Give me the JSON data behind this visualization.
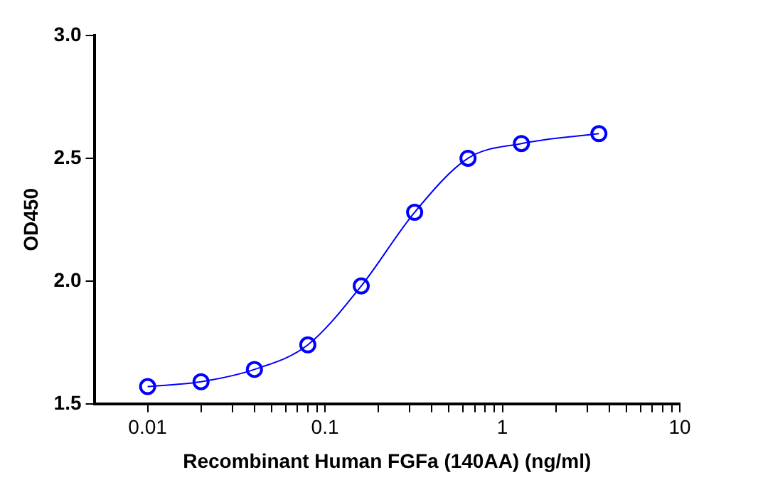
{
  "chart_data": {
    "type": "line",
    "xlabel": "Recombinant Human FGFa (140AA) (ng/ml)",
    "ylabel": "OD450",
    "x": [
      0.01,
      0.02,
      0.04,
      0.08,
      0.16,
      0.32,
      0.64,
      1.28,
      3.5
    ],
    "series": [
      {
        "color": "#0000ff",
        "values": [
          1.57,
          1.59,
          1.64,
          1.74,
          1.98,
          2.28,
          2.5,
          2.56,
          2.6
        ]
      }
    ],
    "log": "x",
    "marker": "circle",
    "line_style": "solid",
    "grid": false,
    "legend": false,
    "xlim": [
      0.005,
      10
    ],
    "xticks": [
      0.01,
      {
        "value": 0.02,
        "label": null
      },
      {
        "value": 0.03,
        "label": null
      },
      {
        "value": 0.04,
        "label": null
      },
      {
        "value": 0.05,
        "label": null
      },
      {
        "value": 0.06,
        "label": null
      },
      {
        "value": 0.07,
        "label": null
      },
      {
        "value": 0.08,
        "label": null
      },
      {
        "value": 0.09,
        "label": null
      },
      0.1,
      {
        "value": 0.2,
        "label": null
      },
      {
        "value": 0.3,
        "label": null
      },
      {
        "value": 0.4,
        "label": null
      },
      {
        "value": 0.5,
        "label": null
      },
      {
        "value": 0.6,
        "label": null
      },
      {
        "value": 0.7,
        "label": null
      },
      {
        "value": 0.8,
        "label": null
      },
      {
        "value": 0.9,
        "label": null
      },
      1,
      {
        "value": 2,
        "label": null
      },
      {
        "value": 3,
        "label": null
      },
      {
        "value": 4,
        "label": null
      },
      {
        "value": 5,
        "label": null
      },
      {
        "value": 6,
        "label": null
      },
      {
        "value": 7,
        "label": null
      },
      {
        "value": 8,
        "label": null
      },
      {
        "value": 9,
        "label": null
      },
      10
    ],
    "ylim": [
      1.5,
      3.0
    ],
    "yticks": [
      {
        "value": 1.5,
        "label": "1.5"
      },
      {
        "value": 2,
        "label": "2.0"
      },
      {
        "value": 2.5,
        "label": "2.5"
      },
      {
        "value": 3,
        "label": "3.0"
      }
    ]
  }
}
